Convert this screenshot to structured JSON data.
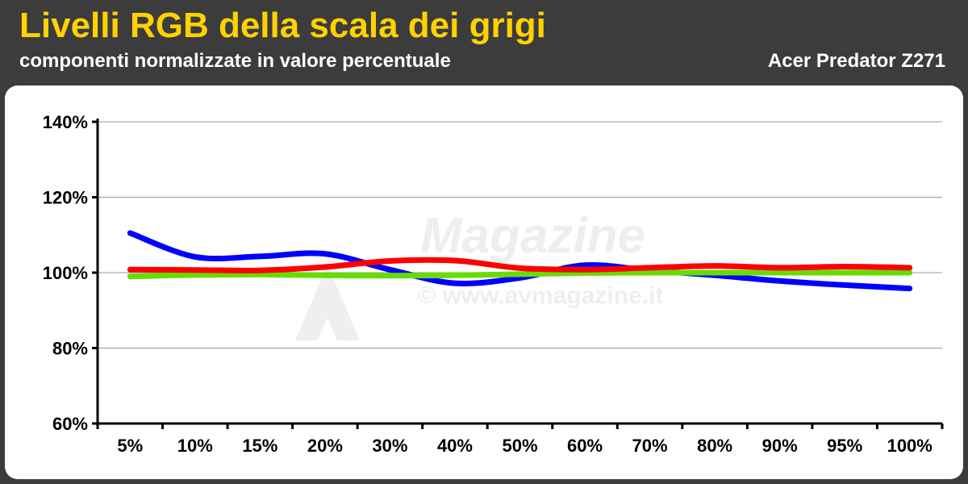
{
  "header": {
    "title": "Livelli RGB della scala dei grigi",
    "subtitle": "componenti normalizzate in valore percentuale",
    "device": "Acer Predator Z271"
  },
  "watermark": {
    "brand": "Magazine",
    "url": "© www.avmagazine.it"
  },
  "chart_data": {
    "type": "line",
    "categories": [
      "5%",
      "10%",
      "15%",
      "20%",
      "30%",
      "40%",
      "50%",
      "60%",
      "70%",
      "80%",
      "90%",
      "95%",
      "100%"
    ],
    "y_ticks": [
      "60%",
      "80%",
      "100%",
      "120%",
      "140%"
    ],
    "ylim": [
      60,
      140
    ],
    "grid": true,
    "series": [
      {
        "color": "#0000ff",
        "values": [
          110.5,
          104.2,
          104.3,
          105.0,
          100.8,
          97.2,
          98.6,
          102.0,
          100.6,
          99.3,
          97.8,
          96.7,
          95.8
        ]
      },
      {
        "color": "#66dd00",
        "values": [
          99.0,
          99.4,
          99.5,
          99.3,
          99.2,
          99.3,
          99.6,
          99.9,
          100.0,
          100.0,
          100.0,
          100.0,
          100.0
        ]
      },
      {
        "color": "#ff0000",
        "values": [
          100.8,
          100.7,
          100.6,
          101.5,
          103.1,
          103.2,
          101.2,
          100.8,
          101.3,
          101.8,
          101.3,
          101.6,
          101.3
        ]
      }
    ]
  }
}
